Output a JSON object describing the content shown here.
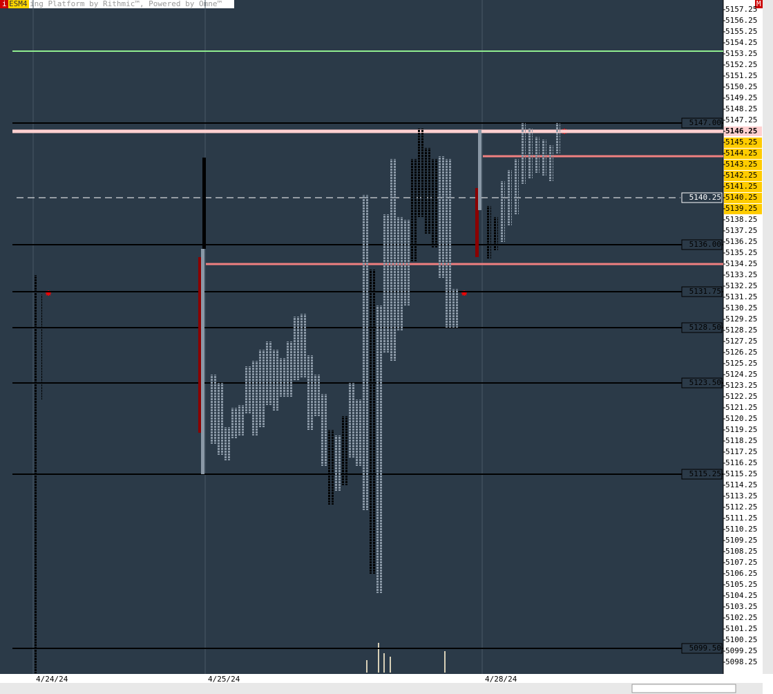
{
  "chart_data": {
    "type": "market_profile",
    "header": {
      "badge_left": "i",
      "symbol": "ESM4",
      "title": "ing Platform by Rithmic™, Powered by Omne™",
      "badge_right": "M"
    },
    "ylim": [
      5097.25,
      5158.125
    ],
    "yticks": [
      5157.25,
      5156.25,
      5155.25,
      5154.25,
      5153.25,
      5152.25,
      5151.25,
      5150.25,
      5149.25,
      5148.25,
      5147.25,
      5146.25,
      5145.25,
      5144.25,
      5143.25,
      5142.25,
      5141.25,
      5140.25,
      5139.25,
      5138.25,
      5137.25,
      5136.25,
      5135.25,
      5134.25,
      5133.25,
      5132.25,
      5131.25,
      5130.25,
      5129.25,
      5128.25,
      5127.25,
      5126.25,
      5125.25,
      5124.25,
      5123.25,
      5122.25,
      5121.25,
      5120.25,
      5119.25,
      5118.25,
      5117.25,
      5116.25,
      5115.25,
      5114.25,
      5113.25,
      5112.25,
      5111.25,
      5110.25,
      5109.25,
      5108.25,
      5107.25,
      5106.25,
      5105.25,
      5104.25,
      5103.25,
      5102.25,
      5101.25,
      5100.25,
      5099.25,
      5098.25
    ],
    "current_price": 5146.25,
    "highlight_range": [
      5139.25,
      5145.25
    ],
    "levels": [
      {
        "value": 5147,
        "label": "5147.00"
      },
      {
        "value": 5136,
        "label": "5136.00"
      },
      5131.75,
      {
        "value": 5128.5,
        "label": "5128.50"
      },
      {
        "value": 5123.5,
        "label": "5123.50"
      },
      5115.25,
      {
        "value": 5099.5,
        "label": "5099.50"
      }
    ],
    "dashed_level": 5140.25,
    "green_line": 5153.5,
    "pink_line": 5146.25,
    "red_lines": [
      {
        "value": 5134.25,
        "session": 1
      },
      {
        "value": 5144,
        "session": 2
      }
    ],
    "sessions": [
      {
        "date": "4/24/24",
        "columns": [
          {
            "lo": 5097.25,
            "hi": 5133.25,
            "color": "#000000"
          },
          {
            "lo": 5122,
            "hi": 5131.5,
            "color": "#000000"
          }
        ],
        "ib": []
      },
      {
        "date": "4/25/24",
        "columns": [
          {
            "lo": 5118,
            "hi": 5124.25,
            "color": "#8a98a6"
          },
          {
            "lo": 5117,
            "hi": 5123.5,
            "color": "#8a98a6"
          },
          {
            "lo": 5116.5,
            "hi": 5119.5,
            "color": "#8a98a6"
          },
          {
            "lo": 5118.5,
            "hi": 5121.25,
            "color": "#8a98a6"
          },
          {
            "lo": 5118.75,
            "hi": 5121.5,
            "color": "#8a98a6"
          },
          {
            "lo": 5120.75,
            "hi": 5125,
            "color": "#8a98a6"
          },
          {
            "lo": 5118.75,
            "hi": 5125.5,
            "color": "#8a98a6"
          },
          {
            "lo": 5119.5,
            "hi": 5126.5,
            "color": "#8a98a6"
          },
          {
            "lo": 5121.5,
            "hi": 5127.25,
            "color": "#8a98a6"
          },
          {
            "lo": 5121,
            "hi": 5126.5,
            "color": "#8a98a6"
          },
          {
            "lo": 5122.25,
            "hi": 5125.75,
            "color": "#8a98a6"
          },
          {
            "lo": 5122.25,
            "hi": 5127.25,
            "color": "#8a98a6"
          },
          {
            "lo": 5123.75,
            "hi": 5129.5,
            "color": "#8a98a6"
          },
          {
            "lo": 5124,
            "hi": 5129.75,
            "color": "#8a98a6"
          },
          {
            "lo": 5119.25,
            "hi": 5126,
            "color": "#8a98a6"
          },
          {
            "lo": 5120.5,
            "hi": 5124.25,
            "color": "#8a98a6"
          },
          {
            "lo": 5116,
            "hi": 5122.5,
            "color": "#8a98a6"
          },
          {
            "lo": 5112.5,
            "hi": 5119.25,
            "color": "#000000"
          },
          {
            "lo": 5113.75,
            "hi": 5118.75,
            "color": "#8a98a6"
          },
          {
            "lo": 5114.25,
            "hi": 5120.5,
            "color": "#000000"
          },
          {
            "lo": 5116.75,
            "hi": 5123.5,
            "color": "#8a98a6"
          },
          {
            "lo": 5116,
            "hi": 5122,
            "color": "#8a98a6"
          },
          {
            "lo": 5112,
            "hi": 5140.5,
            "color": "#8a98a6"
          },
          {
            "lo": 5106.25,
            "hi": 5133.75,
            "color": "#000000"
          },
          {
            "lo": 5104.5,
            "hi": 5130.5,
            "color": "#8a98a6"
          },
          {
            "lo": 5126.25,
            "hi": 5138.75,
            "color": "#8a98a6"
          },
          {
            "lo": 5125.5,
            "hi": 5143.75,
            "color": "#8a98a6"
          },
          {
            "lo": 5128.25,
            "hi": 5138.5,
            "color": "#8a98a6"
          },
          {
            "lo": 5130.5,
            "hi": 5138.25,
            "color": "#8a98a6"
          },
          {
            "lo": 5134.5,
            "hi": 5143.75,
            "color": "#000000"
          },
          {
            "lo": 5138.5,
            "hi": 5146.5,
            "color": "#000000"
          },
          {
            "lo": 5137,
            "hi": 5144.75,
            "color": "#000000"
          },
          {
            "lo": 5135.75,
            "hi": 5143.75,
            "color": "#000000"
          },
          {
            "lo": 5133,
            "hi": 5144,
            "color": "#8a98a6"
          },
          {
            "lo": 5128.5,
            "hi": 5143.75,
            "color": "#8a98a6"
          },
          {
            "lo": 5128.5,
            "hi": 5132,
            "color": "#8a98a6"
          }
        ],
        "ib": [
          {
            "lo": 5119,
            "hi": 5134.875,
            "color": "#8b0000"
          },
          {
            "lo": 5115.25,
            "hi": 5135.625,
            "color": "#8a98a6"
          },
          {
            "lo": 5135.625,
            "hi": 5143.875,
            "color": "#000000"
          }
        ]
      },
      {
        "date": "4/28/24",
        "columns": [
          {
            "lo": 5134.75,
            "hi": 5139.5,
            "color": "#000000"
          },
          {
            "lo": 5135.5,
            "hi": 5138.5,
            "color": "#000000"
          },
          {
            "lo": 5136.25,
            "hi": 5141.75,
            "color": "#8a98a6"
          },
          {
            "lo": 5137.75,
            "hi": 5142.75,
            "color": "#8a98a6"
          },
          {
            "lo": 5138.75,
            "hi": 5143.75,
            "color": "#8a98a6"
          },
          {
            "lo": 5141.5,
            "hi": 5147,
            "color": "#8a98a6"
          },
          {
            "lo": 5142,
            "hi": 5146.5,
            "color": "#8a98a6"
          },
          {
            "lo": 5142.5,
            "hi": 5145.75,
            "color": "#8a98a6"
          },
          {
            "lo": 5142.25,
            "hi": 5145.5,
            "color": "#8a98a6"
          },
          {
            "lo": 5141.75,
            "hi": 5145,
            "color": "#8a98a6"
          },
          {
            "lo": 5144.25,
            "hi": 5147,
            "color": "#8a98a6"
          }
        ],
        "ib": [
          {
            "lo": 5134.875,
            "hi": 5141.125,
            "color": "#8b0000"
          },
          {
            "lo": 5139.125,
            "hi": 5146.375,
            "color": "#8a98a6"
          }
        ]
      }
    ]
  }
}
